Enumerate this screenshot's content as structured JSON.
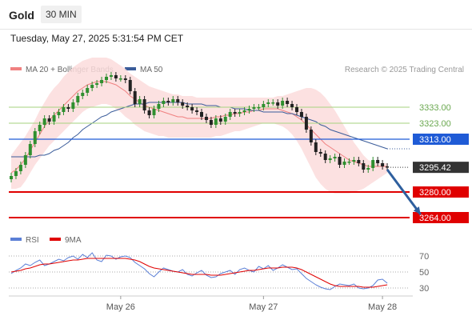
{
  "header": {
    "title": "Gold",
    "timeframe": "30 MIN"
  },
  "timestamp": "Tuesday, May 27, 2025 5:31:54 PM CET",
  "credit": "Research © 2025 Trading Central",
  "colors": {
    "bollinger": "#f08080",
    "band_fill": "#fbdcdc",
    "ma50": "#3a5c9a",
    "support": "#e00000",
    "pivot": "#1f5bd6",
    "resistance": "#a6d27e",
    "candle_up": "#2f8f2f",
    "candle_down": "#222222",
    "arrow": "#2e5f9e",
    "rsi": "#5b7fd6",
    "rsi_ma": "#e00000"
  },
  "chart_data": [
    {
      "type": "candlestick",
      "title": "Gold",
      "timeframe": "30 MIN",
      "legend": [
        "MA 20 + Bollinger Bands",
        "MA 50"
      ],
      "x_tick_labels": [
        "May 26",
        "May 27",
        "May 28"
      ],
      "x_tick_index": [
        23,
        53,
        78
      ],
      "ylim": [
        3255,
        3350
      ],
      "last_price": 3295.42,
      "levels": [
        {
          "type": "resistance",
          "value": 3333.0,
          "label": "3333.00"
        },
        {
          "type": "resistance",
          "value": 3323.0,
          "label": "3323.00"
        },
        {
          "type": "pivot",
          "value": 3313.0,
          "label": "3313.00"
        },
        {
          "type": "support",
          "value": 3280.0,
          "label": "3280.00"
        },
        {
          "type": "support",
          "value": 3264.0,
          "label": "3264.00"
        }
      ],
      "arrow": {
        "from_index": 79,
        "from_value": 3294,
        "to_index": 86,
        "to_value": 3266
      },
      "close": [
        3290,
        3293,
        3297,
        3303,
        3310,
        3318,
        3322,
        3326,
        3324,
        3328,
        3330,
        3333,
        3332,
        3336,
        3340,
        3342,
        3345,
        3347,
        3348,
        3350,
        3352,
        3353,
        3351,
        3351,
        3350,
        3343,
        3335,
        3338,
        3331,
        3328,
        3332,
        3335,
        3337,
        3336,
        3338,
        3336,
        3334,
        3333,
        3331,
        3330,
        3327,
        3325,
        3322,
        3326,
        3324,
        3327,
        3330,
        3329,
        3330,
        3331,
        3332,
        3333,
        3333,
        3335,
        3336,
        3336,
        3334,
        3337,
        3335,
        3333,
        3330,
        3327,
        3319,
        3311,
        3305,
        3304,
        3300,
        3301,
        3302,
        3297,
        3299,
        3299,
        3300,
        3298,
        3294,
        3295,
        3300,
        3298,
        3296,
        3295.42
      ],
      "ma20": [
        3292,
        3294,
        3297,
        3301,
        3306,
        3311,
        3316,
        3321,
        3325,
        3328,
        3331,
        3334,
        3337,
        3340,
        3343,
        3345,
        3347,
        3348,
        3349,
        3349,
        3349,
        3348,
        3347,
        3345,
        3343,
        3340,
        3338,
        3336,
        3334,
        3333,
        3332,
        3331,
        3330,
        3329,
        3328,
        3327,
        3327,
        3326,
        3326,
        3326,
        3326,
        3326,
        3326,
        3327,
        3327,
        3328,
        3328,
        3329,
        3329,
        3330,
        3330,
        3331,
        3331,
        3332,
        3332,
        3332,
        3332,
        3331,
        3330,
        3329,
        3327,
        3325,
        3322,
        3319,
        3316,
        3313,
        3310,
        3308,
        3306,
        3304,
        3302,
        3300,
        3299,
        3298,
        3297,
        3296,
        3296,
        3296,
        3296,
        3296
      ],
      "ma50": [
        3302,
        3302,
        3302,
        3302,
        3302,
        3302,
        3303,
        3303,
        3304,
        3306,
        3307,
        3309,
        3311,
        3314,
        3316,
        3319,
        3321,
        3323,
        3325,
        3327,
        3328,
        3330,
        3331,
        3332,
        3333,
        3334,
        3335,
        3335,
        3335,
        3336,
        3336,
        3336,
        3336,
        3336,
        3336,
        3336,
        3336,
        3335,
        3335,
        3335,
        3335,
        3334,
        3334,
        3334,
        3333,
        3333,
        3333,
        3332,
        3332,
        3332,
        3331,
        3331,
        3331,
        3330,
        3330,
        3330,
        3330,
        3330,
        3329,
        3329,
        3328,
        3327,
        3326,
        3325,
        3324,
        3322,
        3321,
        3319,
        3318,
        3317,
        3316,
        3315,
        3314,
        3313,
        3312,
        3311,
        3310,
        3309,
        3308,
        3307
      ],
      "bb_upper": [
        3303,
        3307,
        3311,
        3315,
        3320,
        3325,
        3331,
        3336,
        3341,
        3345,
        3348,
        3352,
        3355,
        3358,
        3360,
        3362,
        3363,
        3364,
        3364,
        3364,
        3364,
        3363,
        3361,
        3359,
        3357,
        3354,
        3352,
        3350,
        3348,
        3346,
        3345,
        3344,
        3343,
        3342,
        3341,
        3341,
        3340,
        3340,
        3340,
        3339,
        3339,
        3339,
        3339,
        3339,
        3339,
        3339,
        3339,
        3339,
        3339,
        3339,
        3339,
        3339,
        3339,
        3339,
        3339,
        3339,
        3340,
        3340,
        3341,
        3342,
        3343,
        3344,
        3345,
        3345,
        3344,
        3342,
        3339,
        3335,
        3331,
        3326,
        3321,
        3316,
        3311,
        3307,
        3303,
        3300,
        3299,
        3298,
        3298,
        3298
      ],
      "bb_lower": [
        3282,
        3282,
        3283,
        3287,
        3292,
        3297,
        3301,
        3305,
        3309,
        3312,
        3315,
        3318,
        3321,
        3324,
        3327,
        3330,
        3332,
        3333,
        3334,
        3335,
        3335,
        3334,
        3332,
        3330,
        3327,
        3325,
        3322,
        3320,
        3318,
        3317,
        3316,
        3315,
        3315,
        3314,
        3314,
        3314,
        3314,
        3314,
        3314,
        3314,
        3314,
        3314,
        3314,
        3315,
        3315,
        3316,
        3317,
        3318,
        3318,
        3319,
        3320,
        3321,
        3322,
        3323,
        3323,
        3323,
        3322,
        3321,
        3319,
        3316,
        3312,
        3307,
        3301,
        3295,
        3289,
        3285,
        3282,
        3280,
        3279,
        3279,
        3279,
        3279,
        3280,
        3281,
        3282,
        3284,
        3286,
        3288,
        3290,
        3292
      ]
    },
    {
      "type": "line",
      "title": "RSI",
      "legend": [
        "RSI",
        "9MA"
      ],
      "y_tick_labels": [
        "70",
        "50",
        "30"
      ],
      "ylim": [
        20,
        80
      ],
      "rsi": [
        48,
        52,
        55,
        60,
        58,
        62,
        65,
        58,
        60,
        63,
        66,
        64,
        68,
        70,
        66,
        72,
        68,
        74,
        65,
        63,
        71,
        70,
        66,
        69,
        70,
        68,
        62,
        58,
        54,
        48,
        44,
        50,
        55,
        53,
        51,
        50,
        53,
        47,
        45,
        49,
        52,
        46,
        43,
        44,
        48,
        50,
        52,
        47,
        53,
        55,
        52,
        50,
        57,
        54,
        58,
        52,
        55,
        59,
        56,
        53,
        54,
        48,
        42,
        38,
        34,
        31,
        29,
        28,
        32,
        35,
        34,
        33,
        35,
        30,
        29,
        30,
        33,
        40,
        41,
        36
      ],
      "rsi_ma": [
        50,
        51,
        52,
        54,
        55,
        57,
        59,
        60,
        60,
        61,
        62,
        63,
        64,
        65,
        65,
        66,
        67,
        67,
        67,
        67,
        67,
        67,
        67,
        67,
        67,
        66,
        65,
        63,
        60,
        57,
        55,
        54,
        53,
        52,
        51,
        50,
        49,
        48,
        47,
        47,
        47,
        47,
        46,
        46,
        46,
        47,
        48,
        49,
        50,
        51,
        52,
        52,
        53,
        54,
        55,
        55,
        55,
        56,
        56,
        56,
        55,
        53,
        50,
        47,
        44,
        41,
        38,
        35,
        33,
        32,
        32,
        32,
        32,
        32,
        31,
        31,
        31,
        32,
        33,
        34
      ]
    }
  ]
}
